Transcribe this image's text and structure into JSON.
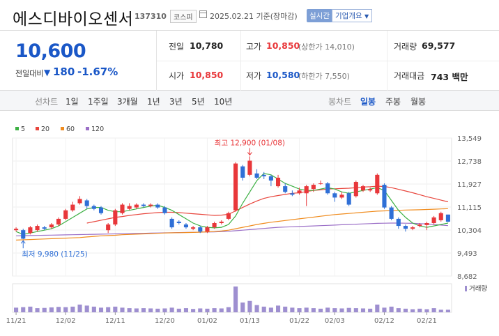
{
  "header": {
    "title": "에스디바이오센서",
    "code": "137310",
    "market": "코스피",
    "date": "2025.02.21 기준(장마감)",
    "realtime_label": "실시간",
    "corp_info_label": "기업개요"
  },
  "price": {
    "current": "10,600",
    "change_label": "전일대비",
    "change_value": "180",
    "change_rate": "-1.67%"
  },
  "stats": {
    "prev_close_label": "전일",
    "prev_close": "10,780",
    "high_label": "고가",
    "high": "10,850",
    "upper_limit_text": "(상한가 14,010)",
    "volume_label": "거래량",
    "volume": "69,577",
    "open_label": "시가",
    "open": "10,850",
    "low_label": "저가",
    "low": "10,580",
    "lower_limit_text": "(하한가 7,550)",
    "trade_value_label": "거래대금",
    "trade_value": "743 백만"
  },
  "period_bar": {
    "line_chart_label": "선차트",
    "periods": [
      "1일",
      "1주일",
      "3개월",
      "1년",
      "3년",
      "5년",
      "10년"
    ],
    "candle_chart_label": "봉차트",
    "candle_periods": [
      "일봉",
      "주봉",
      "월봉"
    ],
    "active_candle": "일봉"
  },
  "colors": {
    "up": "#e8373a",
    "down": "#2f6fd6",
    "ma5": "#3cb043",
    "ma20": "#e8453c",
    "ma60": "#f08c1e",
    "ma120": "#9b6fc7",
    "volume": "#9e8fd0"
  },
  "chart_data": {
    "type": "candlestick",
    "legend": [
      {
        "name": "5",
        "color": "#3cb043"
      },
      {
        "name": "20",
        "color": "#e8453c"
      },
      {
        "name": "60",
        "color": "#f08c1e"
      },
      {
        "name": "120",
        "color": "#9b6fc7"
      }
    ],
    "y_ticks": [
      "13,549",
      "12,738",
      "11,927",
      "11,115",
      "10,304",
      "9,493",
      "8,682"
    ],
    "ylim": [
      8682,
      13549
    ],
    "x_ticks": [
      "11/21",
      "12/02",
      "12/11",
      "12/20",
      "01/02",
      "01/13",
      "01/22",
      "02/03",
      "02/12",
      "02/21"
    ],
    "x_tick_indices": [
      0,
      7,
      14,
      21,
      27,
      33,
      40,
      45,
      52,
      58
    ],
    "high_annotation": "최고 12,900 (01/08)",
    "low_annotation": "최저 9,980 (11/25)",
    "volume_label": "거래량",
    "candles": [
      {
        "o": 10300,
        "c": 10350,
        "h": 10400,
        "l": 10250
      },
      {
        "o": 10300,
        "c": 10000,
        "h": 10350,
        "l": 9980
      },
      {
        "o": 10200,
        "c": 10400,
        "h": 10450,
        "l": 10150
      },
      {
        "o": 10300,
        "c": 10450,
        "h": 10500,
        "l": 10250
      },
      {
        "o": 10400,
        "c": 10350,
        "h": 10450,
        "l": 10300
      },
      {
        "o": 10400,
        "c": 10500,
        "h": 10550,
        "l": 10350
      },
      {
        "o": 10500,
        "c": 10700,
        "h": 10750,
        "l": 10450
      },
      {
        "o": 10700,
        "c": 11000,
        "h": 11050,
        "l": 10650
      },
      {
        "o": 11000,
        "c": 11200,
        "h": 11300,
        "l": 10950
      },
      {
        "o": 11250,
        "c": 11400,
        "h": 11500,
        "l": 11200
      },
      {
        "o": 11350,
        "c": 11150,
        "h": 11400,
        "l": 11050
      },
      {
        "o": 11150,
        "c": 11050,
        "h": 11200,
        "l": 11000
      },
      {
        "o": 11100,
        "c": 10900,
        "h": 11150,
        "l": 10850
      },
      {
        "o": 10300,
        "c": 10500,
        "h": 10550,
        "l": 10200
      },
      {
        "o": 10500,
        "c": 11000,
        "h": 11050,
        "l": 10450
      },
      {
        "o": 10900,
        "c": 11200,
        "h": 11250,
        "l": 10850
      },
      {
        "o": 11050,
        "c": 11150,
        "h": 11250,
        "l": 11000
      },
      {
        "o": 11100,
        "c": 11200,
        "h": 11250,
        "l": 11050
      },
      {
        "o": 11200,
        "c": 11150,
        "h": 11250,
        "l": 11100
      },
      {
        "o": 11150,
        "c": 11200,
        "h": 11250,
        "l": 11100
      },
      {
        "o": 11200,
        "c": 11100,
        "h": 11250,
        "l": 11050
      },
      {
        "o": 11100,
        "c": 10900,
        "h": 11150,
        "l": 10850
      },
      {
        "o": 10700,
        "c": 10400,
        "h": 10750,
        "l": 10350
      },
      {
        "o": 10600,
        "c": 10550,
        "h": 10650,
        "l": 10500
      },
      {
        "o": 10500,
        "c": 10400,
        "h": 10550,
        "l": 10350
      },
      {
        "o": 10350,
        "c": 10400,
        "h": 10450,
        "l": 10300
      },
      {
        "o": 10400,
        "c": 10250,
        "h": 10450,
        "l": 10200
      },
      {
        "o": 10250,
        "c": 10400,
        "h": 10450,
        "l": 10200
      },
      {
        "o": 10400,
        "c": 10550,
        "h": 10600,
        "l": 10350
      },
      {
        "o": 10550,
        "c": 10600,
        "h": 10650,
        "l": 10500
      },
      {
        "o": 10700,
        "c": 10900,
        "h": 10950,
        "l": 10650
      },
      {
        "o": 11000,
        "c": 12650,
        "h": 12700,
        "l": 10950
      },
      {
        "o": 12550,
        "c": 12150,
        "h": 12600,
        "l": 12050
      },
      {
        "o": 12250,
        "c": 12750,
        "h": 12900,
        "l": 12200
      },
      {
        "o": 12300,
        "c": 12150,
        "h": 12450,
        "l": 12100
      },
      {
        "o": 12250,
        "c": 12200,
        "h": 12350,
        "l": 12100
      },
      {
        "o": 12200,
        "c": 12050,
        "h": 12250,
        "l": 11850
      },
      {
        "o": 11850,
        "c": 12150,
        "h": 12250,
        "l": 11800
      },
      {
        "o": 11850,
        "c": 11650,
        "h": 11950,
        "l": 11600
      },
      {
        "o": 11600,
        "c": 11550,
        "h": 11700,
        "l": 11500
      },
      {
        "o": 11600,
        "c": 11700,
        "h": 11800,
        "l": 11550
      },
      {
        "o": 11600,
        "c": 11850,
        "h": 11900,
        "l": 11150
      },
      {
        "o": 11750,
        "c": 11900,
        "h": 11950,
        "l": 11650
      },
      {
        "o": 11950,
        "c": 11950,
        "h": 12050,
        "l": 11900
      },
      {
        "o": 11950,
        "c": 11600,
        "h": 12000,
        "l": 11550
      },
      {
        "o": 11600,
        "c": 11450,
        "h": 11650,
        "l": 11300
      },
      {
        "o": 11450,
        "c": 11550,
        "h": 11650,
        "l": 11400
      },
      {
        "o": 11600,
        "c": 11200,
        "h": 11650,
        "l": 11150
      },
      {
        "o": 11500,
        "c": 12000,
        "h": 12050,
        "l": 11450
      },
      {
        "o": 11700,
        "c": 11850,
        "h": 11900,
        "l": 11650
      },
      {
        "o": 11700,
        "c": 11750,
        "h": 11800,
        "l": 11650
      },
      {
        "o": 11600,
        "c": 12250,
        "h": 12300,
        "l": 11550
      },
      {
        "o": 11900,
        "c": 11100,
        "h": 11950,
        "l": 11050
      },
      {
        "o": 11100,
        "c": 10700,
        "h": 11150,
        "l": 10650
      },
      {
        "o": 10700,
        "c": 10450,
        "h": 10750,
        "l": 10350
      },
      {
        "o": 10450,
        "c": 10350,
        "h": 10500,
        "l": 10250
      },
      {
        "o": 10350,
        "c": 10400,
        "h": 10450,
        "l": 10300
      },
      {
        "o": 10450,
        "c": 10500,
        "h": 10550,
        "l": 10400
      },
      {
        "o": 10480,
        "c": 10550,
        "h": 10600,
        "l": 10300
      },
      {
        "o": 10550,
        "c": 10750,
        "h": 10800,
        "l": 10500
      },
      {
        "o": 10650,
        "c": 10900,
        "h": 10950,
        "l": 10600
      },
      {
        "o": 10850,
        "c": 10600,
        "h": 10850,
        "l": 10580
      }
    ],
    "volumes": [
      18,
      20,
      22,
      16,
      17,
      19,
      21,
      20,
      22,
      30,
      26,
      22,
      18,
      20,
      22,
      18,
      16,
      15,
      16,
      15,
      14,
      15,
      18,
      14,
      16,
      13,
      15,
      14,
      16,
      15,
      20,
      100,
      38,
      44,
      28,
      22,
      18,
      26,
      22,
      18,
      16,
      18,
      16,
      14,
      18,
      16,
      15,
      17,
      16,
      15,
      14,
      30,
      18,
      22,
      16,
      14,
      12,
      14,
      12,
      16,
      10,
      10
    ],
    "ma5": [
      10250,
      10150,
      10200,
      10250,
      10300,
      10350,
      10450,
      10600,
      10750,
      10900,
      11050,
      11100,
      11100,
      11000,
      10950,
      10950,
      11000,
      11050,
      11100,
      11150,
      11180,
      11100,
      11000,
      10850,
      10700,
      10550,
      10450,
      10400,
      10380,
      10400,
      10500,
      10800,
      11250,
      11650,
      12050,
      12300,
      12250,
      12100,
      11950,
      11850,
      11750,
      11700,
      11700,
      11750,
      11800,
      11750,
      11650,
      11600,
      11650,
      11700,
      11750,
      11800,
      11700,
      11350,
      11000,
      10750,
      10550,
      10450,
      10400,
      10450,
      10500,
      10550
    ],
    "ma20": [
      null,
      null,
      null,
      null,
      null,
      null,
      null,
      null,
      null,
      null,
      10550,
      10600,
      10650,
      10700,
      10750,
      10780,
      10820,
      10850,
      10880,
      10900,
      10920,
      10930,
      10930,
      10920,
      10900,
      10880,
      10860,
      10840,
      10820,
      10830,
      10860,
      10980,
      11100,
      11220,
      11330,
      11420,
      11480,
      11520,
      11560,
      11600,
      11620,
      11660,
      11700,
      11720,
      11750,
      11760,
      11770,
      11780,
      11800,
      11820,
      11830,
      11850,
      11840,
      11800,
      11740,
      11680,
      11620,
      11550,
      11480,
      11420,
      11360,
      11300
    ],
    "ma60": [
      9950,
      9960,
      9970,
      9980,
      9990,
      10000,
      10010,
      10020,
      10030,
      10040,
      10060,
      10080,
      10100,
      10110,
      10120,
      10140,
      10150,
      10160,
      10170,
      10180,
      10190,
      10200,
      10205,
      10210,
      10215,
      10220,
      10230,
      10240,
      10250,
      10270,
      10300,
      10350,
      10400,
      10450,
      10500,
      10540,
      10580,
      10610,
      10640,
      10670,
      10700,
      10730,
      10760,
      10790,
      10820,
      10850,
      10870,
      10890,
      10910,
      10930,
      10950,
      10970,
      10980,
      10990,
      11000,
      11010,
      11015,
      11020,
      11030,
      11040,
      11050,
      11060
    ],
    "ma120": [
      10100,
      10105,
      10110,
      10115,
      10120,
      10125,
      10130,
      10135,
      10140,
      10145,
      10150,
      10155,
      10160,
      10165,
      10170,
      10175,
      10180,
      10185,
      10190,
      10195,
      10200,
      10205,
      10210,
      10215,
      10220,
      10225,
      10230,
      10235,
      10240,
      10250,
      10260,
      10280,
      10300,
      10320,
      10340,
      10360,
      10380,
      10400,
      10410,
      10420,
      10430,
      10440,
      10450,
      10460,
      10470,
      10480,
      10490,
      10500,
      10510,
      10520,
      10530,
      10540,
      10545,
      10550,
      10550,
      10545,
      10540,
      10530,
      10520,
      10500,
      10480,
      10460
    ]
  }
}
